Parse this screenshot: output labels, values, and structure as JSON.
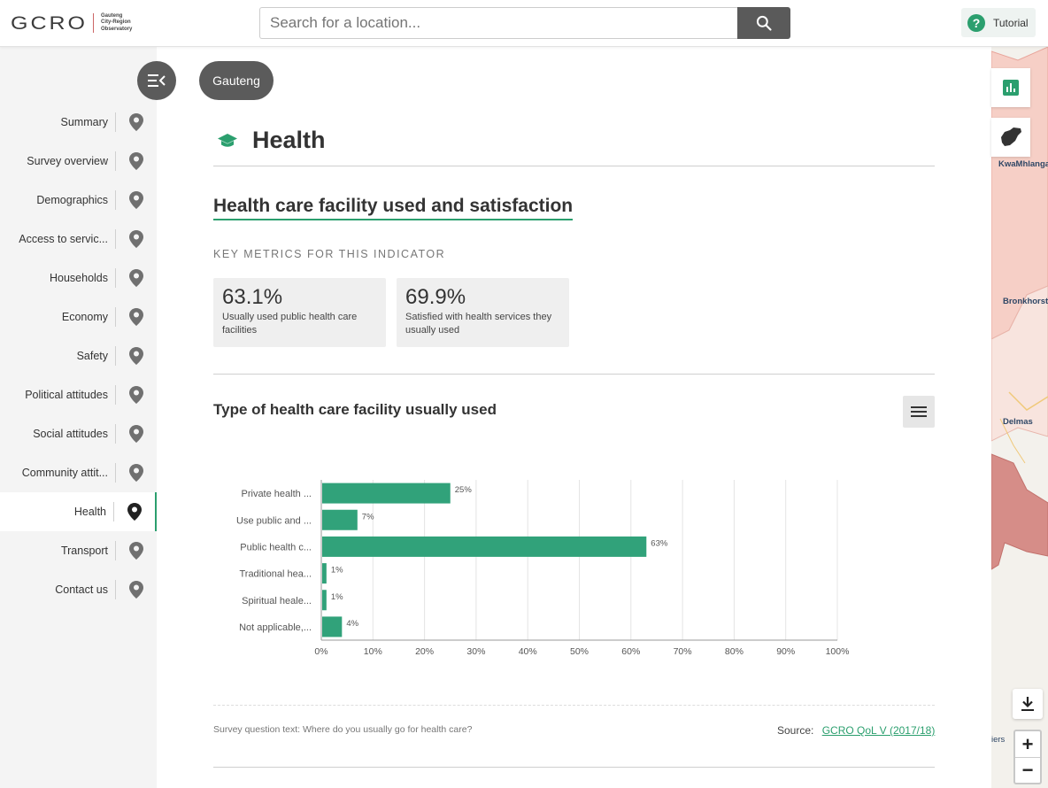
{
  "header": {
    "logo_text": "GCRO",
    "logo_sub": [
      "Gauteng",
      "City-Region",
      "Observatory"
    ],
    "search_placeholder": "Search for a location...",
    "tutorial_label": "Tutorial"
  },
  "sidebar": {
    "items": [
      {
        "label": "Summary"
      },
      {
        "label": "Survey overview"
      },
      {
        "label": "Demographics"
      },
      {
        "label": "Access to servic..."
      },
      {
        "label": "Households"
      },
      {
        "label": "Economy"
      },
      {
        "label": "Safety"
      },
      {
        "label": "Political attitudes"
      },
      {
        "label": "Social attitudes"
      },
      {
        "label": "Community attit..."
      },
      {
        "label": "Health",
        "active": true
      },
      {
        "label": "Transport"
      },
      {
        "label": "Contact us"
      }
    ]
  },
  "location_chip": "Gauteng",
  "main": {
    "section_title": "Health",
    "indicator_title": "Health care facility used and satisfaction",
    "key_metrics_label": "KEY METRICS FOR THIS INDICATOR",
    "metrics": [
      {
        "value": "63.1%",
        "label": "Usually used public health care facilities"
      },
      {
        "value": "69.9%",
        "label": "Satisfied with health services they usually used"
      }
    ],
    "chart_title": "Type of health care facility usually used",
    "survey_question": "Survey question text: Where do you usually go for health care?",
    "source_label": "Source:",
    "source_link": "GCRO QoL V (2017/18)"
  },
  "map": {
    "labels": [
      "KwaMhlanga",
      "Bronkhorst",
      "Delmas",
      "iers"
    ]
  },
  "colors": {
    "accent": "#2b9f6e",
    "bar": "#31a27a",
    "dark_button": "#5b5b5b"
  },
  "chart_data": {
    "type": "bar",
    "orientation": "horizontal",
    "title": "Type of health care facility usually used",
    "categories": [
      "Private health ...",
      "Use public and ...",
      "Public health c...",
      "Traditional hea...",
      "Spiritual heale...",
      "Not applicable,..."
    ],
    "values": [
      25,
      7,
      63,
      1,
      1,
      4
    ],
    "data_labels": [
      "25%",
      "7%",
      "63%",
      "1%",
      "1%",
      "4%"
    ],
    "xlim": [
      0,
      100
    ],
    "xticks": [
      "0%",
      "10%",
      "20%",
      "30%",
      "40%",
      "50%",
      "60%",
      "70%",
      "80%",
      "90%",
      "100%"
    ],
    "grid": true
  }
}
